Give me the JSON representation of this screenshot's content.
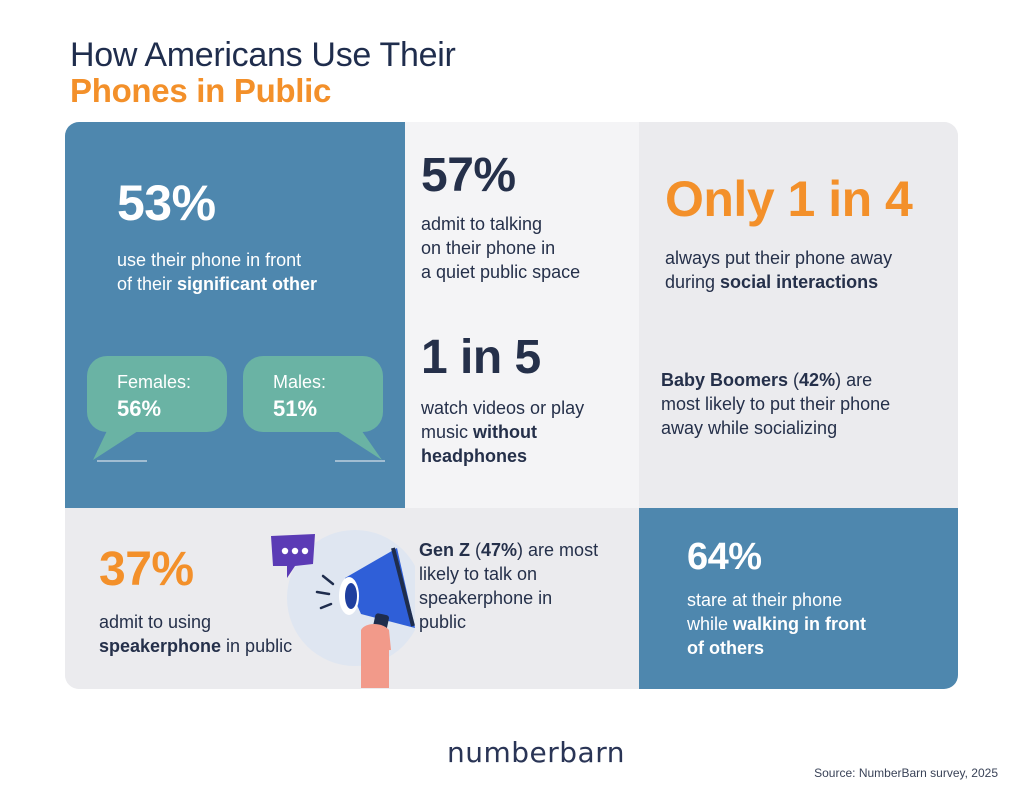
{
  "header": {
    "title_line1": "How Americans Use Their",
    "title_line2": "Phones in Public"
  },
  "stats": {
    "significant_other": {
      "value": "53%",
      "line1": "use their phone in front",
      "line2_pre": "of their ",
      "line2_bold": "significant other",
      "females_label": "Females:",
      "females_value": "56%",
      "males_label": "Males:",
      "males_value": "51%"
    },
    "quiet_space": {
      "value": "57%",
      "line1": "admit to talking",
      "line2": "on their phone in",
      "line3": "a quiet public space"
    },
    "no_headphones": {
      "value": "1 in 5",
      "line1": "watch videos or play",
      "line2_pre": "music ",
      "line2_bold": "without",
      "line3_bold": "headphones"
    },
    "phone_away": {
      "value": "Only 1 in 4",
      "line1": "always put their phone away",
      "line2_pre": "during ",
      "line2_bold": "social interactions"
    },
    "boomers": {
      "line1_bold": "Baby Boomers",
      "line1_mid": " (",
      "line1_pct": "42%",
      "line1_post": ") are",
      "line2": "most likely to put their phone",
      "line3": "away while socializing"
    },
    "speakerphone": {
      "value": "37%",
      "line1": "admit to using",
      "line2_bold": "speakerphone",
      "line2_post": " in public"
    },
    "genz": {
      "line1_bold": "Gen Z",
      "line1_mid": " (",
      "line1_pct": "47%",
      "line1_post": ") are most",
      "line2": "likely to talk on",
      "line3": "speakerphone in",
      "line4": "public"
    },
    "walking": {
      "value": "64%",
      "line1": "stare at their phone",
      "line2_pre": "while ",
      "line2_bold": "walking in front",
      "line3_bold": "of others"
    }
  },
  "footer": {
    "logo": "numberbarn",
    "source": "Source: NumberBarn survey, 2025"
  },
  "colors": {
    "accent_orange": "#f3902a",
    "blue": "#4e87ae",
    "teal": "#6ab3a4",
    "navy": "#1f2d4d"
  },
  "icons": [
    "megaphone-icon",
    "chat-bubble-icon"
  ]
}
